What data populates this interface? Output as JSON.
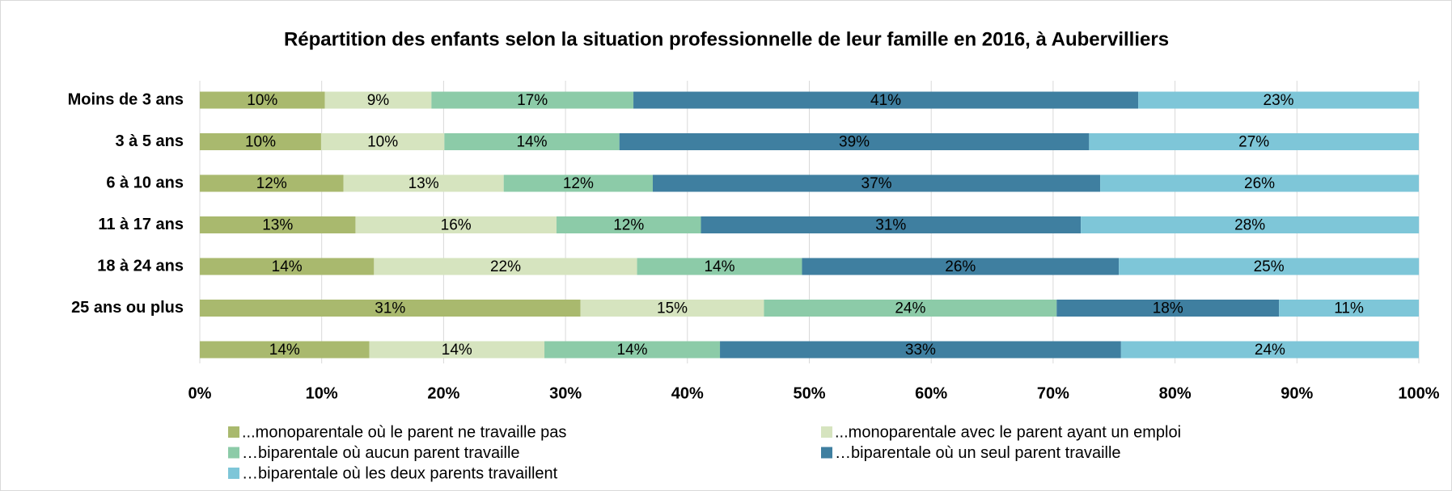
{
  "chart_data": {
    "type": "stacked_bar_horizontal",
    "title": "Répartition des enfants selon la situation professionnelle de leur famille en 2016, à Aubervilliers",
    "categories": [
      "Moins de 3 ans",
      "3 à 5 ans",
      "6 à 10 ans",
      "11 à 17 ans",
      "18 à 24 ans",
      "25 ans ou plus",
      null
    ],
    "series": [
      {
        "name": "...monoparentale où le parent ne travaille pas",
        "color": "#a9b96e",
        "values": [
          10.26,
          9.95,
          11.78,
          12.77,
          14.29,
          31.23,
          13.91
        ],
        "value_labels": [
          "10%",
          "10%",
          "12%",
          "13%",
          "14%",
          "31%",
          "14%"
        ]
      },
      {
        "name": "...monoparentale avec le parent ayant un emploi",
        "color": "#d6e4bf",
        "values": [
          8.74,
          10.11,
          13.15,
          16.49,
          21.58,
          15.05,
          14.36
        ],
        "value_labels": [
          "9%",
          "10%",
          "13%",
          "16%",
          "22%",
          "15%",
          "14%"
        ]
      },
      {
        "name": "…biparentale où aucun parent travaille",
        "color": "#8ccba8",
        "values": [
          16.57,
          14.36,
          12.23,
          11.85,
          13.53,
          24.01,
          14.4
        ],
        "value_labels": [
          "17%",
          "14%",
          "12%",
          "12%",
          "14%",
          "24%",
          "14%"
        ]
      },
      {
        "name": "…biparentale où un seul parent travaille",
        "color": "#3f7fa0",
        "values": [
          41.41,
          38.53,
          36.7,
          31.16,
          25.99,
          18.24,
          32.9
        ],
        "value_labels": [
          "41%",
          "39%",
          "37%",
          "31%",
          "26%",
          "18%",
          "33%"
        ]
      },
      {
        "name": "…biparentale où les deux parents travaillent",
        "color": "#7ec6d8",
        "values": [
          23.02,
          27.05,
          26.14,
          27.74,
          24.62,
          11.47,
          24.43
        ],
        "value_labels": [
          "23%",
          "27%",
          "26%",
          "28%",
          "25%",
          "11%",
          "24%"
        ]
      }
    ],
    "xlim": [
      0,
      100
    ],
    "xticks": [
      {
        "value": 0,
        "label": "0%"
      },
      {
        "value": 10,
        "label": "10%"
      },
      {
        "value": 20,
        "label": "20%"
      },
      {
        "value": 30,
        "label": "30%"
      },
      {
        "value": 40,
        "label": "40%"
      },
      {
        "value": 50,
        "label": "50%"
      },
      {
        "value": 60,
        "label": "60%"
      },
      {
        "value": 70,
        "label": "70%"
      },
      {
        "value": 80,
        "label": "80%"
      },
      {
        "value": 90,
        "label": "90%"
      },
      {
        "value": 100,
        "label": "100%"
      }
    ],
    "grid": true,
    "legend": "bottom"
  }
}
